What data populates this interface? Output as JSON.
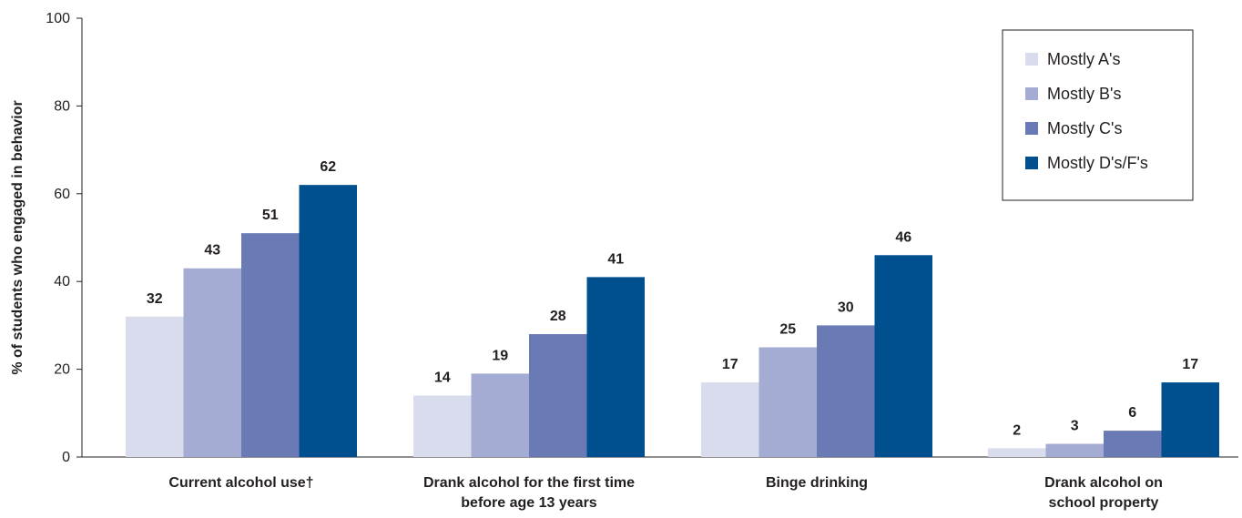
{
  "chart_data": {
    "type": "bar",
    "ylabel": "% of students who engaged in behavior",
    "ylim": [
      0,
      100
    ],
    "yticks": [
      "0",
      "20",
      "40",
      "60",
      "80",
      "100"
    ],
    "categories": [
      [
        "Current alcohol use†"
      ],
      [
        "Drank alcohol for the first time",
        "before age 13 years"
      ],
      [
        "Binge drinking"
      ],
      [
        "Drank alcohol on",
        "school property"
      ]
    ],
    "series": [
      {
        "name": "Mostly A's",
        "color": "#d9dcec",
        "values": [
          32,
          14,
          17,
          2
        ]
      },
      {
        "name": "Mostly B's",
        "color": "#a5acd3",
        "values": [
          43,
          19,
          25,
          3
        ]
      },
      {
        "name": "Mostly C's",
        "color": "#6a7ab5",
        "values": [
          51,
          28,
          30,
          6
        ]
      },
      {
        "name": "Mostly D's/F's",
        "color": "#00508f",
        "values": [
          62,
          41,
          46,
          17
        ]
      }
    ],
    "legend_position": "top-right",
    "grid": false
  }
}
